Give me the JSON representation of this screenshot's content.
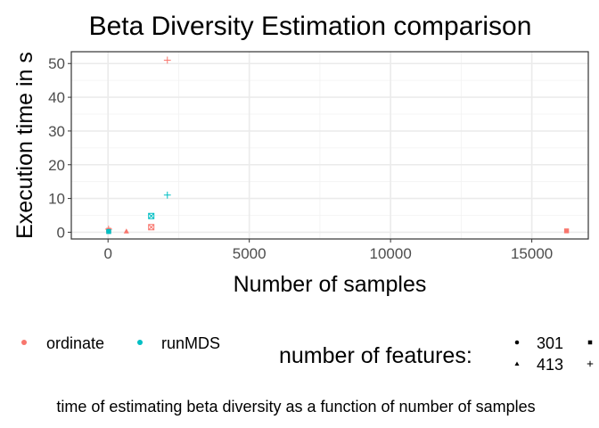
{
  "chart_data": {
    "type": "scatter",
    "title": "Beta Diversity Estimation comparison",
    "xlabel": "Number of samples",
    "ylabel": "Execution time in s",
    "xlim": [
      -1300,
      17000
    ],
    "ylim": [
      -2.0,
      53.5
    ],
    "x_ticks": [
      0,
      5000,
      10000,
      15000
    ],
    "x_tick_labels": [
      "0",
      "5000",
      "10000",
      "15000"
    ],
    "y_ticks": [
      0,
      10,
      20,
      30,
      40,
      50
    ],
    "y_tick_labels": [
      "0",
      "10",
      "20",
      "30",
      "40",
      "50"
    ],
    "grid": true,
    "legend_position": "bottom",
    "caption": "time of estimating beta diversity as a function of number of samples",
    "color_legend": [
      {
        "name": "ordinate",
        "color": "#F8766D"
      },
      {
        "name": "runMDS",
        "color": "#00BFC4"
      }
    ],
    "shape_legend_title": "number of features:",
    "shape_legend": [
      {
        "label": "301",
        "shape": "circle"
      },
      {
        "label": "413",
        "shape": "triangle"
      },
      {
        "label": "",
        "shape": "square"
      },
      {
        "label": "",
        "shape": "plus"
      }
    ],
    "series": [
      {
        "name": "ordinate",
        "color": "#F8766D",
        "points": [
          {
            "x": 20,
            "y": 0.9,
            "shape": "plus"
          },
          {
            "x": 20,
            "y": 0.5,
            "shape": "circle"
          },
          {
            "x": 20,
            "y": 0.2,
            "shape": "triangle"
          },
          {
            "x": 25,
            "y": 0.6,
            "shape": "square"
          },
          {
            "x": 650,
            "y": 0.3,
            "shape": "triangle"
          },
          {
            "x": 1530,
            "y": 1.5,
            "shape": "square-x"
          },
          {
            "x": 2100,
            "y": 51.0,
            "shape": "plus"
          },
          {
            "x": 16230,
            "y": 0.4,
            "shape": "square"
          }
        ]
      },
      {
        "name": "runMDS",
        "color": "#00BFC4",
        "points": [
          {
            "x": 20,
            "y": 0.3,
            "shape": "circle"
          },
          {
            "x": 25,
            "y": 0.2,
            "shape": "square"
          },
          {
            "x": 1530,
            "y": 4.8,
            "shape": "square-x"
          },
          {
            "x": 2100,
            "y": 11.0,
            "shape": "plus"
          }
        ]
      }
    ]
  }
}
